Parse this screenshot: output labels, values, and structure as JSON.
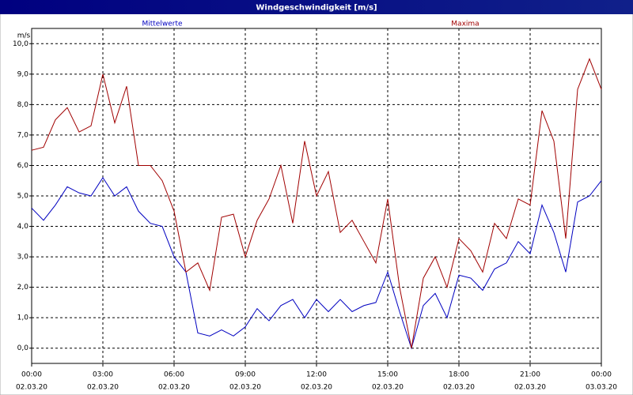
{
  "chart_data": {
    "type": "line",
    "title": "Windgeschwindigkeit [m/s]",
    "y_unit": "m/s",
    "x": [
      0,
      0.5,
      1,
      1.5,
      2,
      2.5,
      3,
      3.5,
      4,
      4.5,
      5,
      5.5,
      6,
      6.5,
      7,
      7.5,
      8,
      8.5,
      9,
      9.5,
      10,
      10.5,
      11,
      11.5,
      12,
      12.5,
      13,
      13.5,
      14,
      14.5,
      15,
      15.5,
      16,
      16.5,
      17,
      17.5,
      18,
      18.5,
      19,
      19.5,
      20,
      20.5,
      21,
      21.5,
      22,
      22.5,
      23,
      23.5,
      24
    ],
    "series": [
      {
        "name": "Mittelwerte",
        "color": "#0000c0",
        "values": [
          4.6,
          4.2,
          4.7,
          5.3,
          5.1,
          5.0,
          5.6,
          5.0,
          5.3,
          4.5,
          4.1,
          4.0,
          3.0,
          2.5,
          0.5,
          0.4,
          0.6,
          0.4,
          0.7,
          1.3,
          0.9,
          1.4,
          1.6,
          1.0,
          1.6,
          1.2,
          1.6,
          1.2,
          1.4,
          1.5,
          2.5,
          1.2,
          0.0,
          1.4,
          1.8,
          1.0,
          2.4,
          2.3,
          1.9,
          2.6,
          2.8,
          3.5,
          3.1,
          4.7,
          3.8,
          2.5,
          4.8,
          5.0,
          5.5
        ]
      },
      {
        "name": "Maxima",
        "color": "#a00000",
        "values": [
          6.5,
          6.6,
          7.5,
          7.9,
          7.1,
          7.3,
          9.0,
          7.4,
          8.6,
          6.0,
          6.0,
          5.5,
          4.5,
          2.5,
          2.8,
          1.9,
          4.3,
          4.4,
          3.0,
          4.2,
          4.9,
          6.0,
          4.1,
          6.8,
          5.0,
          5.8,
          3.8,
          4.2,
          3.5,
          2.8,
          4.9,
          2.0,
          0.0,
          2.3,
          3.0,
          2.0,
          3.6,
          3.2,
          2.5,
          4.1,
          3.6,
          4.9,
          4.7,
          7.8,
          6.8,
          3.6,
          8.5,
          9.5,
          8.5
        ]
      }
    ],
    "xlim": [
      0,
      24
    ],
    "xticks": [
      {
        "value": 0,
        "label": "00:00"
      },
      {
        "value": 3,
        "label": "03:00"
      },
      {
        "value": 6,
        "label": "06:00"
      },
      {
        "value": 9,
        "label": "09:00"
      },
      {
        "value": 12,
        "label": "12:00"
      },
      {
        "value": 15,
        "label": "15:00"
      },
      {
        "value": 18,
        "label": "18:00"
      },
      {
        "value": 21,
        "label": "21:00"
      },
      {
        "value": 24,
        "label": "00:00"
      }
    ],
    "xtick_dates": [
      "02.03.20",
      "02.03.20",
      "02.03.20",
      "02.03.20",
      "02.03.20",
      "02.03.20",
      "02.03.20",
      "02.03.20",
      "03.03.20"
    ],
    "ylim": [
      -0.5,
      10.5
    ],
    "yticks": [
      {
        "value": 0,
        "label": "0,0"
      },
      {
        "value": 1,
        "label": "1,0"
      },
      {
        "value": 2,
        "label": "2,0"
      },
      {
        "value": 3,
        "label": "3,0"
      },
      {
        "value": 4,
        "label": "4,0"
      },
      {
        "value": 5,
        "label": "5,0"
      },
      {
        "value": 6,
        "label": "6,0"
      },
      {
        "value": 7,
        "label": "7,0"
      },
      {
        "value": 8,
        "label": "8,0"
      },
      {
        "value": 9,
        "label": "9,0"
      },
      {
        "value": 10,
        "label": "10,0"
      }
    ],
    "grid": true
  }
}
